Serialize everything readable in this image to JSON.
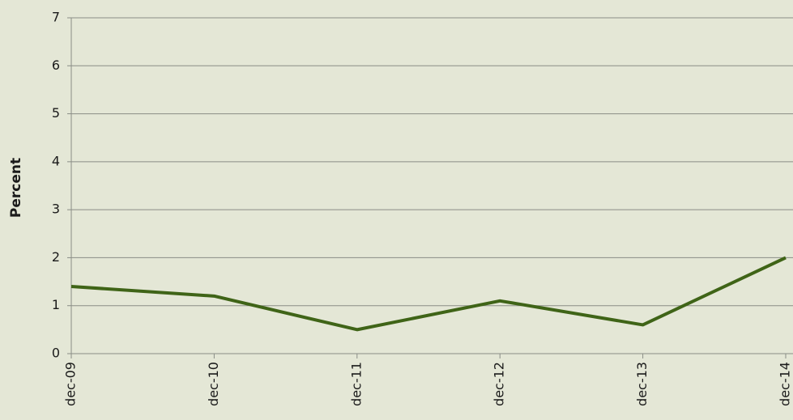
{
  "chart_data": {
    "type": "line",
    "y_label": "Percent",
    "categories": [
      "dec-09",
      "dec-10",
      "dec-11",
      "dec-12",
      "dec-13",
      "dec-14"
    ],
    "series": [
      {
        "name": null,
        "color": "#3f6417",
        "values": [
          1.4,
          1.2,
          0.5,
          1.1,
          0.6,
          2.0
        ]
      }
    ],
    "ylim": [
      0,
      7
    ],
    "yticks": [
      0,
      1,
      2,
      3,
      4,
      5,
      6,
      7
    ],
    "grid": true
  }
}
